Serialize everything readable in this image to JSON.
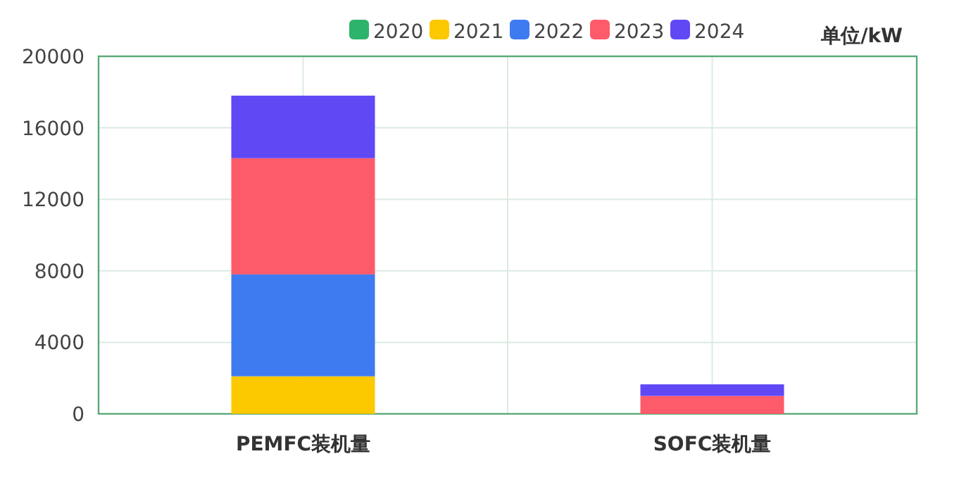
{
  "chart_data": {
    "type": "bar",
    "stacked": true,
    "ylabel": "单位/kW",
    "categories": [
      "PEMFC装机量",
      "SOFC装机量"
    ],
    "series": [
      {
        "name": "2020",
        "color": "#2eb36c",
        "values": [
          0,
          0
        ]
      },
      {
        "name": "2021",
        "color": "#fcc800",
        "values": [
          2100,
          0
        ]
      },
      {
        "name": "2022",
        "color": "#3f7bf0",
        "values": [
          5700,
          0
        ]
      },
      {
        "name": "2023",
        "color": "#fd5a6a",
        "values": [
          6500,
          1000
        ]
      },
      {
        "name": "2024",
        "color": "#6048f5",
        "values": [
          3500,
          650
        ]
      }
    ],
    "ylim": [
      0,
      20000
    ],
    "yticks": [
      0,
      4000,
      8000,
      12000,
      16000,
      20000
    ],
    "grid": true,
    "legend": "top"
  }
}
